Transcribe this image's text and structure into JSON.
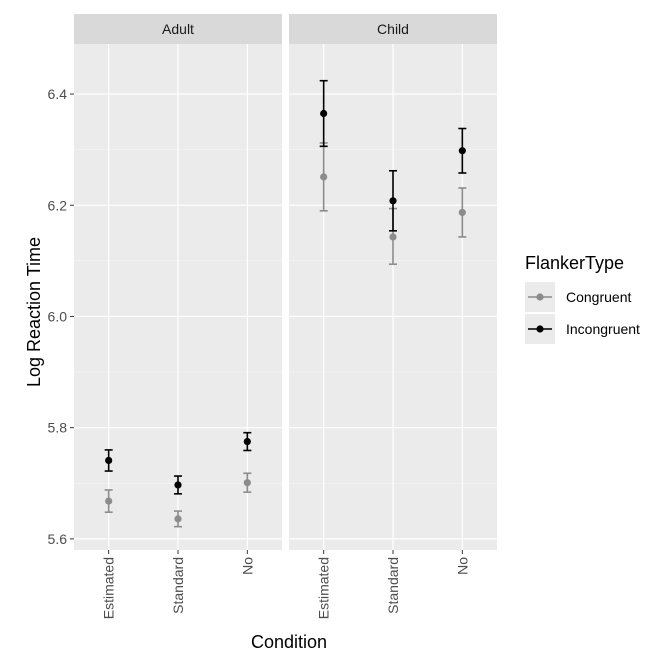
{
  "chart_data": {
    "type": "scatter",
    "panels": [
      "Adult",
      "Child"
    ],
    "categories": [
      "Estimated",
      "Standard",
      "No"
    ],
    "xlabel": "Condition",
    "ylabel": "Log Reaction Time",
    "ylim": [
      5.58,
      6.49
    ],
    "yticks": [
      "5.6",
      "5.8",
      "6.0",
      "6.2",
      "6.4"
    ],
    "grid": true,
    "legend": {
      "title": "FlankerType",
      "placement": "right"
    },
    "series": [
      {
        "name": "Congruent",
        "color": "#8c8c8c",
        "values": {
          "Adult": [
            {
              "x": "Estimated",
              "y": 5.668,
              "low": 5.648,
              "high": 5.688
            },
            {
              "x": "Standard",
              "y": 5.636,
              "low": 5.622,
              "high": 5.65
            },
            {
              "x": "No",
              "y": 5.701,
              "low": 5.684,
              "high": 5.718
            }
          ],
          "Child": [
            {
              "x": "Estimated",
              "y": 6.251,
              "low": 6.19,
              "high": 6.312
            },
            {
              "x": "Standard",
              "y": 6.143,
              "low": 6.094,
              "high": 6.194
            },
            {
              "x": "No",
              "y": 6.187,
              "low": 6.143,
              "high": 6.231
            }
          ]
        }
      },
      {
        "name": "Incongruent",
        "color": "#000000",
        "values": {
          "Adult": [
            {
              "x": "Estimated",
              "y": 5.741,
              "low": 5.722,
              "high": 5.76
            },
            {
              "x": "Standard",
              "y": 5.697,
              "low": 5.681,
              "high": 5.713
            },
            {
              "x": "No",
              "y": 5.775,
              "low": 5.759,
              "high": 5.791
            }
          ],
          "Child": [
            {
              "x": "Estimated",
              "y": 6.365,
              "low": 6.306,
              "high": 6.424
            },
            {
              "x": "Standard",
              "y": 6.208,
              "low": 6.154,
              "high": 6.262
            },
            {
              "x": "No",
              "y": 6.298,
              "low": 6.258,
              "high": 6.338
            }
          ]
        }
      }
    ]
  }
}
